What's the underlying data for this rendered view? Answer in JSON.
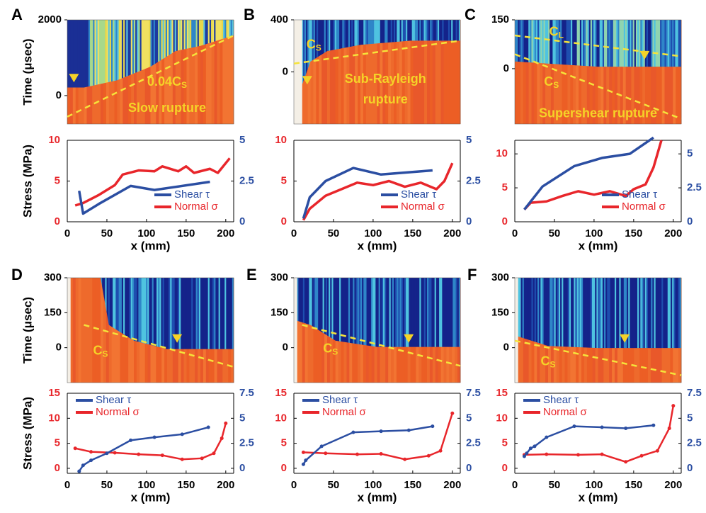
{
  "chart_data": [
    {
      "type": "heatmap",
      "label": "A",
      "ylabel": "Time (μsec)",
      "ylim": [
        -750,
        2000
      ],
      "yticks": [
        0,
        2000
      ],
      "annotations": [
        {
          "text": "0.04C",
          "subscript": "S"
        },
        {
          "text": "Slow rupture"
        }
      ]
    },
    {
      "type": "line",
      "ylabel": "Stress (MPa)",
      "xlabel": "x (mm)",
      "xlim": [
        0,
        210
      ],
      "xticks": [
        0,
        50,
        100,
        150,
        200
      ],
      "ylim": [
        0,
        10
      ],
      "yticks": [
        0,
        5,
        10
      ],
      "y2lim": [
        0,
        5
      ],
      "y2ticks": [
        0,
        2.5,
        5
      ],
      "legend": "lower right",
      "markers": false,
      "series": [
        {
          "name": "Shear τ",
          "color": "#2b4ea2",
          "axis": "y2",
          "x": [
            15,
            20,
            40,
            80,
            110,
            180
          ],
          "values": [
            1.9,
            0.5,
            1.1,
            2.2,
            1.95,
            2.45
          ]
        },
        {
          "name": "Normal σ",
          "color": "#e8262b",
          "x": [
            10,
            20,
            40,
            60,
            70,
            90,
            110,
            120,
            140,
            150,
            160,
            180,
            190,
            205
          ],
          "values": [
            2,
            2.3,
            3.3,
            4.5,
            5.8,
            6.3,
            6.2,
            6.8,
            6.2,
            6.8,
            6.0,
            6.5,
            6.0,
            7.8
          ]
        }
      ]
    },
    {
      "type": "heatmap",
      "label": "B",
      "ylim": [
        -400,
        400
      ],
      "yticks": [
        0,
        400
      ],
      "annotations": [
        {
          "text": "C",
          "subscript": "S"
        },
        {
          "text": "Sub-Rayleigh"
        },
        {
          "text": "rupture"
        }
      ]
    },
    {
      "type": "line",
      "xlabel": "x (mm)",
      "xlim": [
        0,
        210
      ],
      "xticks": [
        0,
        50,
        100,
        150,
        200
      ],
      "ylim": [
        0,
        10
      ],
      "yticks": [
        0,
        5,
        10
      ],
      "y2lim": [
        0,
        5
      ],
      "y2ticks": [
        0,
        2.5,
        5
      ],
      "legend": "lower right",
      "markers": false,
      "series": [
        {
          "name": "Shear τ",
          "color": "#2b4ea2",
          "axis": "y2",
          "x": [
            12,
            20,
            40,
            75,
            110,
            175
          ],
          "values": [
            0.2,
            1.5,
            2.5,
            3.3,
            2.9,
            3.15
          ]
        },
        {
          "name": "Normal σ",
          "color": "#e8262b",
          "x": [
            12,
            20,
            40,
            60,
            80,
            100,
            120,
            140,
            160,
            180,
            190,
            200
          ],
          "values": [
            0.2,
            1.6,
            3.2,
            4.0,
            4.8,
            4.5,
            5.0,
            4.3,
            4.8,
            4.0,
            5.0,
            7.2
          ]
        }
      ]
    },
    {
      "type": "heatmap",
      "label": "C",
      "ylim": [
        -170,
        150
      ],
      "yticks": [
        0,
        150
      ],
      "annotations": [
        {
          "text": "C",
          "subscript": "L"
        },
        {
          "text": "C",
          "subscript": "S"
        },
        {
          "text": "Supershear rupture"
        }
      ]
    },
    {
      "type": "line",
      "xlabel": "x (mm)",
      "xlim": [
        0,
        210
      ],
      "xticks": [
        0,
        50,
        100,
        150,
        200
      ],
      "ylim": [
        0,
        12
      ],
      "yticks": [
        0,
        5,
        10
      ],
      "y2lim": [
        0,
        6
      ],
      "y2ticks": [
        0,
        2.5,
        5
      ],
      "legend": "lower right",
      "markers": false,
      "series": [
        {
          "name": "Shear τ",
          "color": "#2b4ea2",
          "axis": "y2",
          "x": [
            12,
            35,
            75,
            110,
            145,
            175
          ],
          "values": [
            0.9,
            2.6,
            4.1,
            4.7,
            5.0,
            6.2
          ]
        },
        {
          "name": "Normal σ",
          "color": "#e8262b",
          "x": [
            12,
            20,
            40,
            60,
            80,
            100,
            120,
            140,
            150,
            165,
            175,
            185
          ],
          "values": [
            1.8,
            2.8,
            3.0,
            3.8,
            4.5,
            4.0,
            4.5,
            3.8,
            4.8,
            5.5,
            8.0,
            12.0
          ]
        }
      ]
    },
    {
      "type": "heatmap",
      "label": "D",
      "ylabel": "Time (μsec)",
      "ylim": [
        -150,
        300
      ],
      "yticks": [
        0,
        150,
        300
      ],
      "annotations": [
        {
          "text": "C",
          "subscript": "S"
        }
      ]
    },
    {
      "type": "line",
      "ylabel": "Stress (MPa)",
      "xlabel": "x (mm)",
      "xlim": [
        0,
        210
      ],
      "xticks": [
        0,
        50,
        100,
        150,
        200
      ],
      "ylim": [
        -1,
        15
      ],
      "yticks": [
        0,
        5,
        10,
        15
      ],
      "y2lim": [
        -0.5,
        7.5
      ],
      "y2ticks": [
        0,
        2.5,
        5,
        7.5
      ],
      "legend": "upper left",
      "markers": true,
      "series": [
        {
          "name": "Shear τ",
          "color": "#2b4ea2",
          "axis": "y2",
          "x": [
            15,
            20,
            30,
            50,
            80,
            110,
            145,
            178
          ],
          "values": [
            -0.3,
            0.3,
            0.8,
            1.5,
            2.8,
            3.1,
            3.4,
            4.1
          ]
        },
        {
          "name": "Normal σ",
          "color": "#e8262b",
          "x": [
            10,
            30,
            60,
            90,
            120,
            145,
            170,
            185,
            195,
            200
          ],
          "values": [
            4,
            3.3,
            3.1,
            2.8,
            2.6,
            1.8,
            2,
            3,
            6,
            9
          ]
        }
      ]
    },
    {
      "type": "heatmap",
      "label": "E",
      "ylim": [
        -150,
        300
      ],
      "yticks": [
        0,
        150,
        300
      ],
      "annotations": [
        {
          "text": "C",
          "subscript": "S"
        }
      ]
    },
    {
      "type": "line",
      "xlabel": "x (mm)",
      "xlim": [
        0,
        210
      ],
      "xticks": [
        0,
        50,
        100,
        150,
        200
      ],
      "ylim": [
        -1,
        15
      ],
      "yticks": [
        0,
        5,
        10,
        15
      ],
      "y2lim": [
        -0.5,
        7.5
      ],
      "y2ticks": [
        0,
        2.5,
        5,
        7.5
      ],
      "legend": "upper left",
      "markers": true,
      "series": [
        {
          "name": "Shear τ",
          "color": "#2b4ea2",
          "axis": "y2",
          "x": [
            12,
            15,
            35,
            75,
            110,
            145,
            175
          ],
          "values": [
            0.4,
            0.8,
            2.2,
            3.6,
            3.7,
            3.8,
            4.2
          ]
        },
        {
          "name": "Normal σ",
          "color": "#e8262b",
          "x": [
            12,
            40,
            80,
            110,
            140,
            170,
            185,
            200
          ],
          "values": [
            3.2,
            3.0,
            2.8,
            2.9,
            1.8,
            2.5,
            3.5,
            11
          ]
        }
      ]
    },
    {
      "type": "heatmap",
      "label": "F",
      "ylim": [
        -150,
        300
      ],
      "yticks": [
        0,
        150,
        300
      ],
      "annotations": [
        {
          "text": "C",
          "subscript": "S"
        }
      ]
    },
    {
      "type": "line",
      "xlabel": "x (mm)",
      "xlim": [
        0,
        210
      ],
      "xticks": [
        0,
        50,
        100,
        150,
        200
      ],
      "ylim": [
        -1,
        15
      ],
      "yticks": [
        0,
        5,
        10,
        15
      ],
      "y2lim": [
        -0.5,
        7.5
      ],
      "y2ticks": [
        0,
        2.5,
        5,
        7.5
      ],
      "legend": "upper left",
      "markers": true,
      "series": [
        {
          "name": "Shear τ",
          "color": "#2b4ea2",
          "axis": "y2",
          "x": [
            12,
            15,
            20,
            25,
            40,
            75,
            110,
            140,
            175
          ],
          "values": [
            1.2,
            1.5,
            2.0,
            2.2,
            3.1,
            4.2,
            4.1,
            4.0,
            4.3
          ]
        },
        {
          "name": "Normal σ",
          "color": "#e8262b",
          "x": [
            12,
            40,
            80,
            110,
            140,
            160,
            180,
            195,
            200
          ],
          "values": [
            2.7,
            2.8,
            2.7,
            2.8,
            1.3,
            2.5,
            3.5,
            8,
            12.5
          ]
        }
      ]
    }
  ]
}
